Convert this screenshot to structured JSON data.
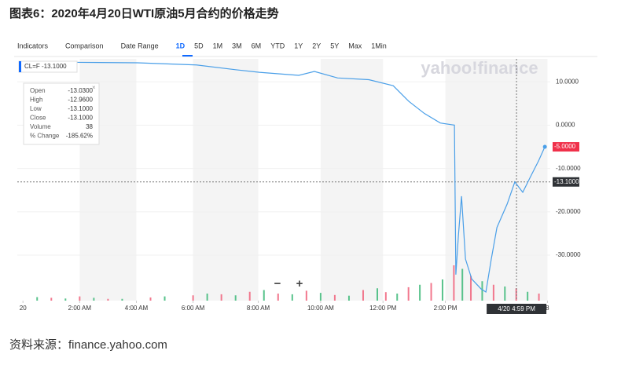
{
  "title": "图表6：2020年4月20日WTI原油5月合约的价格走势",
  "source": "资料来源：finance.yahoo.com",
  "toolbar": [
    "Indicators",
    "Comparison",
    "Date Range",
    "1D",
    "5D",
    "1M",
    "3M",
    "6M",
    "YTD",
    "1Y",
    "2Y",
    "5Y",
    "Max",
    "1Min"
  ],
  "watermark": "yahoo!finance",
  "symbol_label": "CL=F -13.1000",
  "tooltip": {
    "rows": [
      [
        "Open",
        "-13.0300"
      ],
      [
        "High",
        "-12.9600"
      ],
      [
        "Low",
        "-13.1000"
      ],
      [
        "Close",
        "-13.1000"
      ],
      [
        "Volume",
        "38"
      ],
      [
        "% Change",
        "-185.62%"
      ]
    ]
  },
  "zoom": [
    "−",
    "+"
  ],
  "chart_data": {
    "type": "line",
    "x": [
      0.02,
      1.96,
      4.04,
      6.12,
      7.5,
      8.34,
      9.73,
      10.28,
      11.1,
      12.2,
      13.06,
      13.61,
      14.16,
      14.72,
      15.22,
      15.27,
      15.36,
      15.47,
      15.61,
      15.83,
      16.16,
      16.33,
      16.52,
      16.72,
      17.08,
      17.35,
      17.63,
      17.91,
      18.19,
      18.41
    ],
    "series": [
      {
        "color": "#4a9fe8",
        "values": [
          14.5,
          14.5,
          14.4,
          13.9,
          12.8,
          12.2,
          11.5,
          12.4,
          10.9,
          10.5,
          9.1,
          5.5,
          2.7,
          0.5,
          0,
          -34.5,
          -25.5,
          -16.4,
          -30.9,
          -35.5,
          -37.8,
          -38.5,
          -30.9,
          -23.6,
          -18.2,
          -13.1,
          -15.5,
          -11.8,
          -8.2,
          -5.0
        ]
      }
    ],
    "xlim": [
      -0.2,
      18.6
    ],
    "ylim": [
      -40.5,
      15.3
    ],
    "xticks": [
      {
        "value": 0,
        "label": "20"
      },
      {
        "value": 2,
        "label": "2:00 AM"
      },
      {
        "value": 4,
        "label": "4:00 AM"
      },
      {
        "value": 6,
        "label": "6:00 AM"
      },
      {
        "value": 8.3,
        "label": "8:00 AM"
      },
      {
        "value": 10.5,
        "label": "10:00 AM"
      },
      {
        "value": 12.7,
        "label": "12:00 PM"
      },
      {
        "value": 14.9,
        "label": "2:00 PM"
      },
      {
        "value": 18.5,
        "label": "8"
      }
    ],
    "cursor": {
      "value": 17.41,
      "label": "4/20 4:59 PM"
    },
    "yticks": [
      {
        "value": 10,
        "label": "10.0000"
      },
      {
        "value": 0,
        "label": "0.0000"
      },
      {
        "value": -10,
        "label": "-10.0000"
      },
      {
        "value": -20,
        "label": "-20.0000"
      },
      {
        "value": -30,
        "label": "-30.0000"
      }
    ],
    "price_tags": [
      {
        "value": -5.0,
        "label": "-5.0000",
        "color": "#f0304a"
      },
      {
        "value": -13.1,
        "label": "-13.1000",
        "color": "#2f3236"
      }
    ],
    "volume": {
      "ylim": [
        0,
        100
      ],
      "series": [
        {
          "color": "#3cb878",
          "x": [
            0.5,
            1.5,
            2.5,
            3.5,
            5,
            6.5,
            7.5,
            8.5,
            9.5,
            10.5,
            11.5,
            12.5,
            13.2,
            14,
            14.8,
            15.5,
            16.2,
            17,
            17.8
          ],
          "values": [
            10,
            6,
            8,
            5,
            12,
            20,
            15,
            30,
            18,
            22,
            14,
            35,
            20,
            45,
            60,
            90,
            55,
            40,
            25
          ]
        },
        {
          "color": "#f0607a",
          "x": [
            1,
            2,
            3,
            4.5,
            6,
            7,
            8,
            9,
            10,
            11,
            12,
            12.8,
            13.6,
            14.4,
            15.2,
            15.8,
            16.6,
            17.4,
            18.2
          ],
          "values": [
            8,
            12,
            5,
            9,
            15,
            18,
            25,
            20,
            28,
            16,
            30,
            24,
            38,
            50,
            100,
            70,
            45,
            35,
            20
          ]
        }
      ]
    }
  }
}
